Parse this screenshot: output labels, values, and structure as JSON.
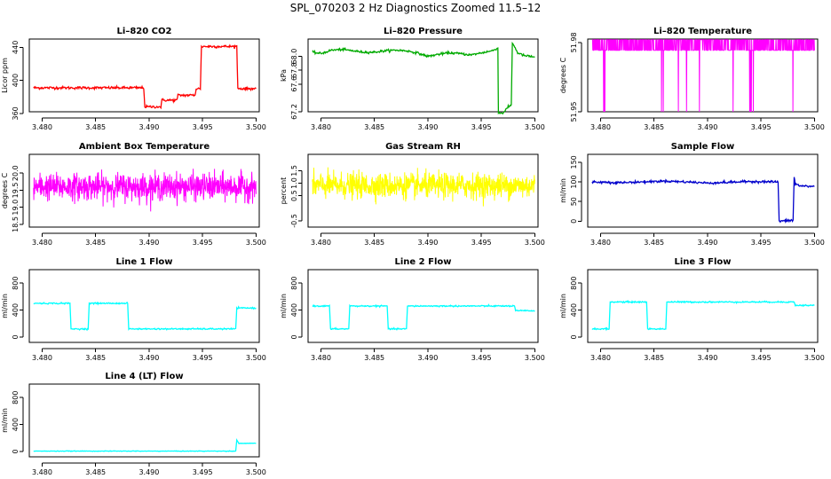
{
  "page_title": "SPL_070203  2 Hz Diagnostics Zoomed 11.5–12",
  "chart_data": [
    {
      "id": "co2",
      "type": "line",
      "title": "Li–820 CO2",
      "ylabel": "Licor ppm",
      "color": "#ff0000",
      "xlim": [
        3.4788,
        3.5003
      ],
      "ylim": [
        362,
        450
      ],
      "xticks": [
        "3.480",
        "3.485",
        "3.490",
        "3.495",
        "3.500"
      ],
      "yticks": [
        "360",
        "400",
        "440"
      ],
      "series": [
        {
          "x": [
            3.4792,
            3.4895,
            3.4896,
            3.4911,
            3.4912,
            3.4926,
            3.4927,
            3.4943,
            3.4944,
            3.4948,
            3.4949,
            3.4982,
            3.4983,
            3.5
          ],
          "y": [
            391,
            391,
            368,
            368,
            376,
            376,
            382,
            382,
            390,
            390,
            441,
            441,
            390,
            390
          ]
        }
      ],
      "noise": 0.8
    },
    {
      "id": "pressure",
      "type": "line",
      "title": "Li–820 Pressure",
      "ylabel": "kPa",
      "color": "#00aa00",
      "xlim": [
        3.4788,
        3.5003
      ],
      "ylim": [
        67.2,
        68.25
      ],
      "xticks": [
        "3.480",
        "3.485",
        "3.490",
        "3.495",
        "3.500"
      ],
      "yticks": [
        "67.2",
        "67.6",
        "67.8",
        "68.0"
      ],
      "series": [
        {
          "x": [
            3.4792,
            3.48,
            3.481,
            3.482,
            3.483,
            3.484,
            3.485,
            3.486,
            3.487,
            3.488,
            3.489,
            3.49,
            3.491,
            3.492,
            3.493,
            3.494,
            3.495,
            3.496,
            3.49655,
            3.4966,
            3.497,
            3.4974,
            3.4978,
            3.4979,
            3.4984,
            3.499,
            3.5
          ],
          "y": [
            68.06,
            68.04,
            68.09,
            68.1,
            68.08,
            68.06,
            68.06,
            68.08,
            68.09,
            68.08,
            68.05,
            68.0,
            68.03,
            68.05,
            68.04,
            68.02,
            68.05,
            68.08,
            68.12,
            67.18,
            67.18,
            67.25,
            67.3,
            68.2,
            68.05,
            68.01,
            67.99
          ]
        }
      ],
      "noise": 0.008
    },
    {
      "id": "licor-temp",
      "type": "line",
      "title": "Li–820 Temperature",
      "ylabel": "degrees C",
      "color": "#ff00ff",
      "xlim": [
        3.4788,
        3.5003
      ],
      "ylim": [
        51.95,
        51.9815
      ],
      "xticks": [
        "3.480",
        "3.485",
        "3.490",
        "3.495",
        "3.500"
      ],
      "yticks": [
        "51.95",
        "51.98"
      ],
      "yticks_extra": [
        "51.98"
      ],
      "series": [
        {
          "x": [
            3.4792,
            3.5
          ],
          "levels": [
            51.9766,
            51.9812
          ],
          "rare_low": 51.95
        }
      ]
    },
    {
      "id": "box-temp",
      "type": "line",
      "title": "Ambient Box Temperature",
      "ylabel": "degrees C",
      "color": "#ff00ff",
      "xlim": [
        3.4788,
        3.5003
      ],
      "ylim": [
        18.42,
        20.55
      ],
      "xticks": [
        "3.480",
        "3.485",
        "3.490",
        "3.495",
        "3.500"
      ],
      "yticks": [
        "18.5",
        "19.0",
        "19.5",
        "20.0"
      ],
      "series": [
        {
          "x": [
            3.4792,
            3.5
          ],
          "mean": 19.6,
          "spread": 0.35
        }
      ]
    },
    {
      "id": "rh",
      "type": "line",
      "title": "Gas Stream RH",
      "ylabel": "percent",
      "color": "#ffff00",
      "xlim": [
        3.4788,
        3.5003
      ],
      "ylim": [
        -0.75,
        2.15
      ],
      "xticks": [
        "3.480",
        "3.485",
        "3.490",
        "3.495",
        "3.500"
      ],
      "yticks": [
        "-0.5",
        "0.5",
        "1.0",
        "1.5"
      ],
      "series": [
        {
          "x": [
            3.4792,
            3.5
          ],
          "mean": 0.9,
          "spread": 0.45
        }
      ]
    },
    {
      "id": "sample-flow",
      "type": "line",
      "title": "Sample Flow",
      "ylabel": "ml/min",
      "color": "#0000cc",
      "xlim": [
        3.4788,
        3.5003
      ],
      "ylim": [
        -15,
        170
      ],
      "xticks": [
        "3.480",
        "3.485",
        "3.490",
        "3.495",
        "3.500"
      ],
      "yticks": [
        "0",
        "50",
        "100",
        "150"
      ],
      "series": [
        {
          "x": [
            3.4792,
            3.482,
            3.484,
            3.486,
            3.488,
            3.49,
            3.492,
            3.494,
            3.4966,
            3.4967,
            3.498,
            3.4981,
            3.4982,
            3.4986,
            3.5
          ],
          "y": [
            100,
            98,
            100,
            102,
            100,
            97,
            99,
            101,
            100,
            0,
            2,
            113,
            95,
            90,
            88
          ]
        }
      ],
      "noise": 1.5
    },
    {
      "id": "line1-flow",
      "type": "line",
      "title": "Line 1 Flow",
      "ylabel": "ml/min",
      "color": "#00ffff",
      "xlim": [
        3.4788,
        3.5003
      ],
      "ylim": [
        -80,
        1000
      ],
      "xticks": [
        "3.480",
        "3.485",
        "3.490",
        "3.495",
        "3.500"
      ],
      "yticks": [
        "0",
        "400",
        "800"
      ],
      "series": [
        {
          "x": [
            3.4792,
            3.4826,
            3.4827,
            3.4843,
            3.4844,
            3.488,
            3.4881,
            3.4981,
            3.4982,
            3.5
          ],
          "y": [
            500,
            500,
            120,
            120,
            500,
            500,
            120,
            120,
            430,
            430
          ]
        }
      ],
      "noise": 5
    },
    {
      "id": "line2-flow",
      "type": "line",
      "title": "Line 2 Flow",
      "ylabel": "ml/min",
      "color": "#00ffff",
      "xlim": [
        3.4788,
        3.5003
      ],
      "ylim": [
        -80,
        1000
      ],
      "xticks": [
        "3.480",
        "3.485",
        "3.490",
        "3.495",
        "3.500"
      ],
      "yticks": [
        "0",
        "400",
        "800"
      ],
      "series": [
        {
          "x": [
            3.4792,
            3.4808,
            3.4809,
            3.4826,
            3.4827,
            3.4862,
            3.4863,
            3.488,
            3.4881,
            3.4981,
            3.4982,
            3.5
          ],
          "y": [
            460,
            460,
            120,
            120,
            460,
            460,
            120,
            120,
            460,
            460,
            390,
            390
          ]
        }
      ],
      "noise": 5
    },
    {
      "id": "line3-flow",
      "type": "line",
      "title": "Line 3 Flow",
      "ylabel": "ml/min",
      "color": "#00ffff",
      "xlim": [
        3.4788,
        3.5003
      ],
      "ylim": [
        -80,
        1000
      ],
      "xticks": [
        "3.480",
        "3.485",
        "3.490",
        "3.495",
        "3.500"
      ],
      "yticks": [
        "0",
        "400",
        "800"
      ],
      "series": [
        {
          "x": [
            3.4792,
            3.4808,
            3.4809,
            3.4843,
            3.4844,
            3.4861,
            3.4862,
            3.4981,
            3.4982,
            3.5
          ],
          "y": [
            120,
            120,
            520,
            520,
            120,
            120,
            520,
            520,
            470,
            470
          ]
        }
      ],
      "noise": 5
    },
    {
      "id": "line4-flow",
      "type": "line",
      "title": "Line 4 (LT) Flow",
      "ylabel": "ml/min",
      "color": "#00ffff",
      "xlim": [
        3.4788,
        3.5003
      ],
      "ylim": [
        -80,
        1000
      ],
      "xticks": [
        "3.480",
        "3.485",
        "3.490",
        "3.495",
        "3.500"
      ],
      "yticks": [
        "0",
        "400",
        "800"
      ],
      "series": [
        {
          "x": [
            3.4792,
            3.4981,
            3.4982,
            3.4984,
            3.5
          ],
          "y": [
            5,
            5,
            170,
            120,
            120
          ]
        }
      ],
      "noise": 2
    }
  ]
}
